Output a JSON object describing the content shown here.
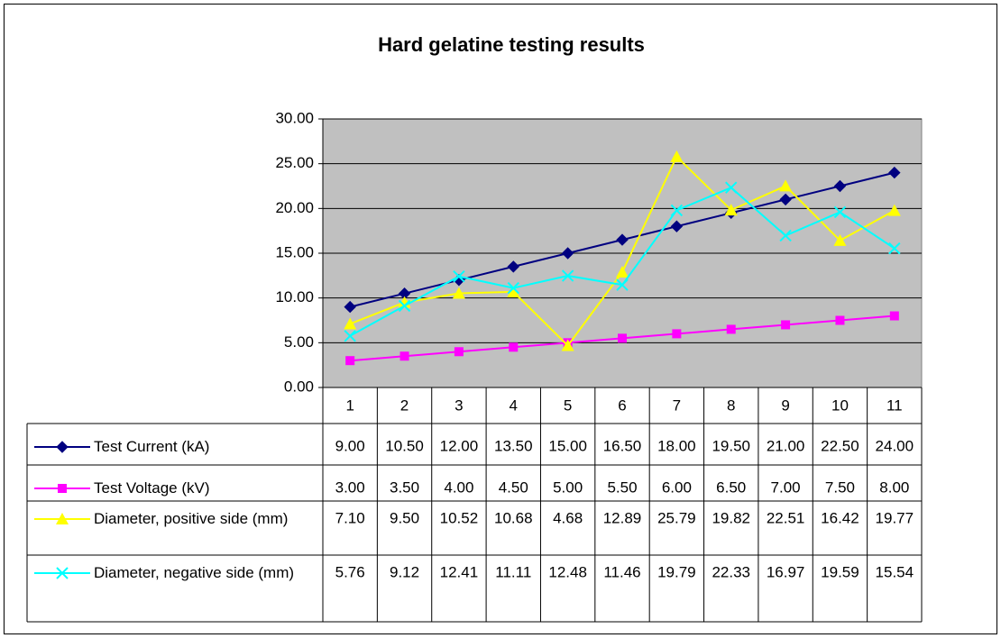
{
  "chart_data": {
    "type": "line",
    "title": "Hard gelatine testing results",
    "categories": [
      "1",
      "2",
      "3",
      "4",
      "5",
      "6",
      "7",
      "8",
      "9",
      "10",
      "11"
    ],
    "series": [
      {
        "name": "Test Current (kA)",
        "color": "#000080",
        "marker": "diamond",
        "values": [
          9,
          10.5,
          12,
          13.5,
          15,
          16.5,
          18,
          19.5,
          21,
          22.5,
          24
        ],
        "value_labels": [
          "9.00",
          "10.50",
          "12.00",
          "13.50",
          "15.00",
          "16.50",
          "18.00",
          "19.50",
          "21.00",
          "22.50",
          "24.00"
        ]
      },
      {
        "name": "Test Voltage (kV)",
        "color": "#ff00ff",
        "marker": "square",
        "values": [
          3,
          3.5,
          4,
          4.5,
          5,
          5.5,
          6,
          6.5,
          7,
          7.5,
          8
        ],
        "value_labels": [
          "3.00",
          "3.50",
          "4.00",
          "4.50",
          "5.00",
          "5.50",
          "6.00",
          "6.50",
          "7.00",
          "7.50",
          "8.00"
        ]
      },
      {
        "name": "Diameter, positive side (mm)",
        "color": "#ffff00",
        "marker": "triangle",
        "values": [
          7.1,
          9.5,
          10.52,
          10.68,
          4.68,
          12.89,
          25.79,
          19.82,
          22.51,
          16.42,
          19.77
        ],
        "value_labels": [
          "7.10",
          "9.50",
          "10.52",
          "10.68",
          "4.68",
          "12.89",
          "25.79",
          "19.82",
          "22.51",
          "16.42",
          "19.77"
        ]
      },
      {
        "name": "Diameter, negative side (mm)",
        "color": "#00ffff",
        "marker": "x",
        "values": [
          5.76,
          9.12,
          12.41,
          11.11,
          12.48,
          11.46,
          19.79,
          22.33,
          16.97,
          19.59,
          15.54
        ],
        "value_labels": [
          "5.76",
          "9.12",
          "12.41",
          "11.11",
          "12.48",
          "11.46",
          "19.79",
          "22.33",
          "16.97",
          "19.59",
          "15.54"
        ]
      }
    ],
    "ylim": [
      0,
      30
    ],
    "yticks": [
      {
        "value": 0,
        "label": "0.00"
      },
      {
        "value": 5,
        "label": "5.00"
      },
      {
        "value": 10,
        "label": "10.00"
      },
      {
        "value": 15,
        "label": "15.00"
      },
      {
        "value": 20,
        "label": "20.00"
      },
      {
        "value": 25,
        "label": "25.00"
      },
      {
        "value": 30,
        "label": "30.00"
      }
    ],
    "grid": true,
    "plot_background": "#c0c0c0"
  }
}
